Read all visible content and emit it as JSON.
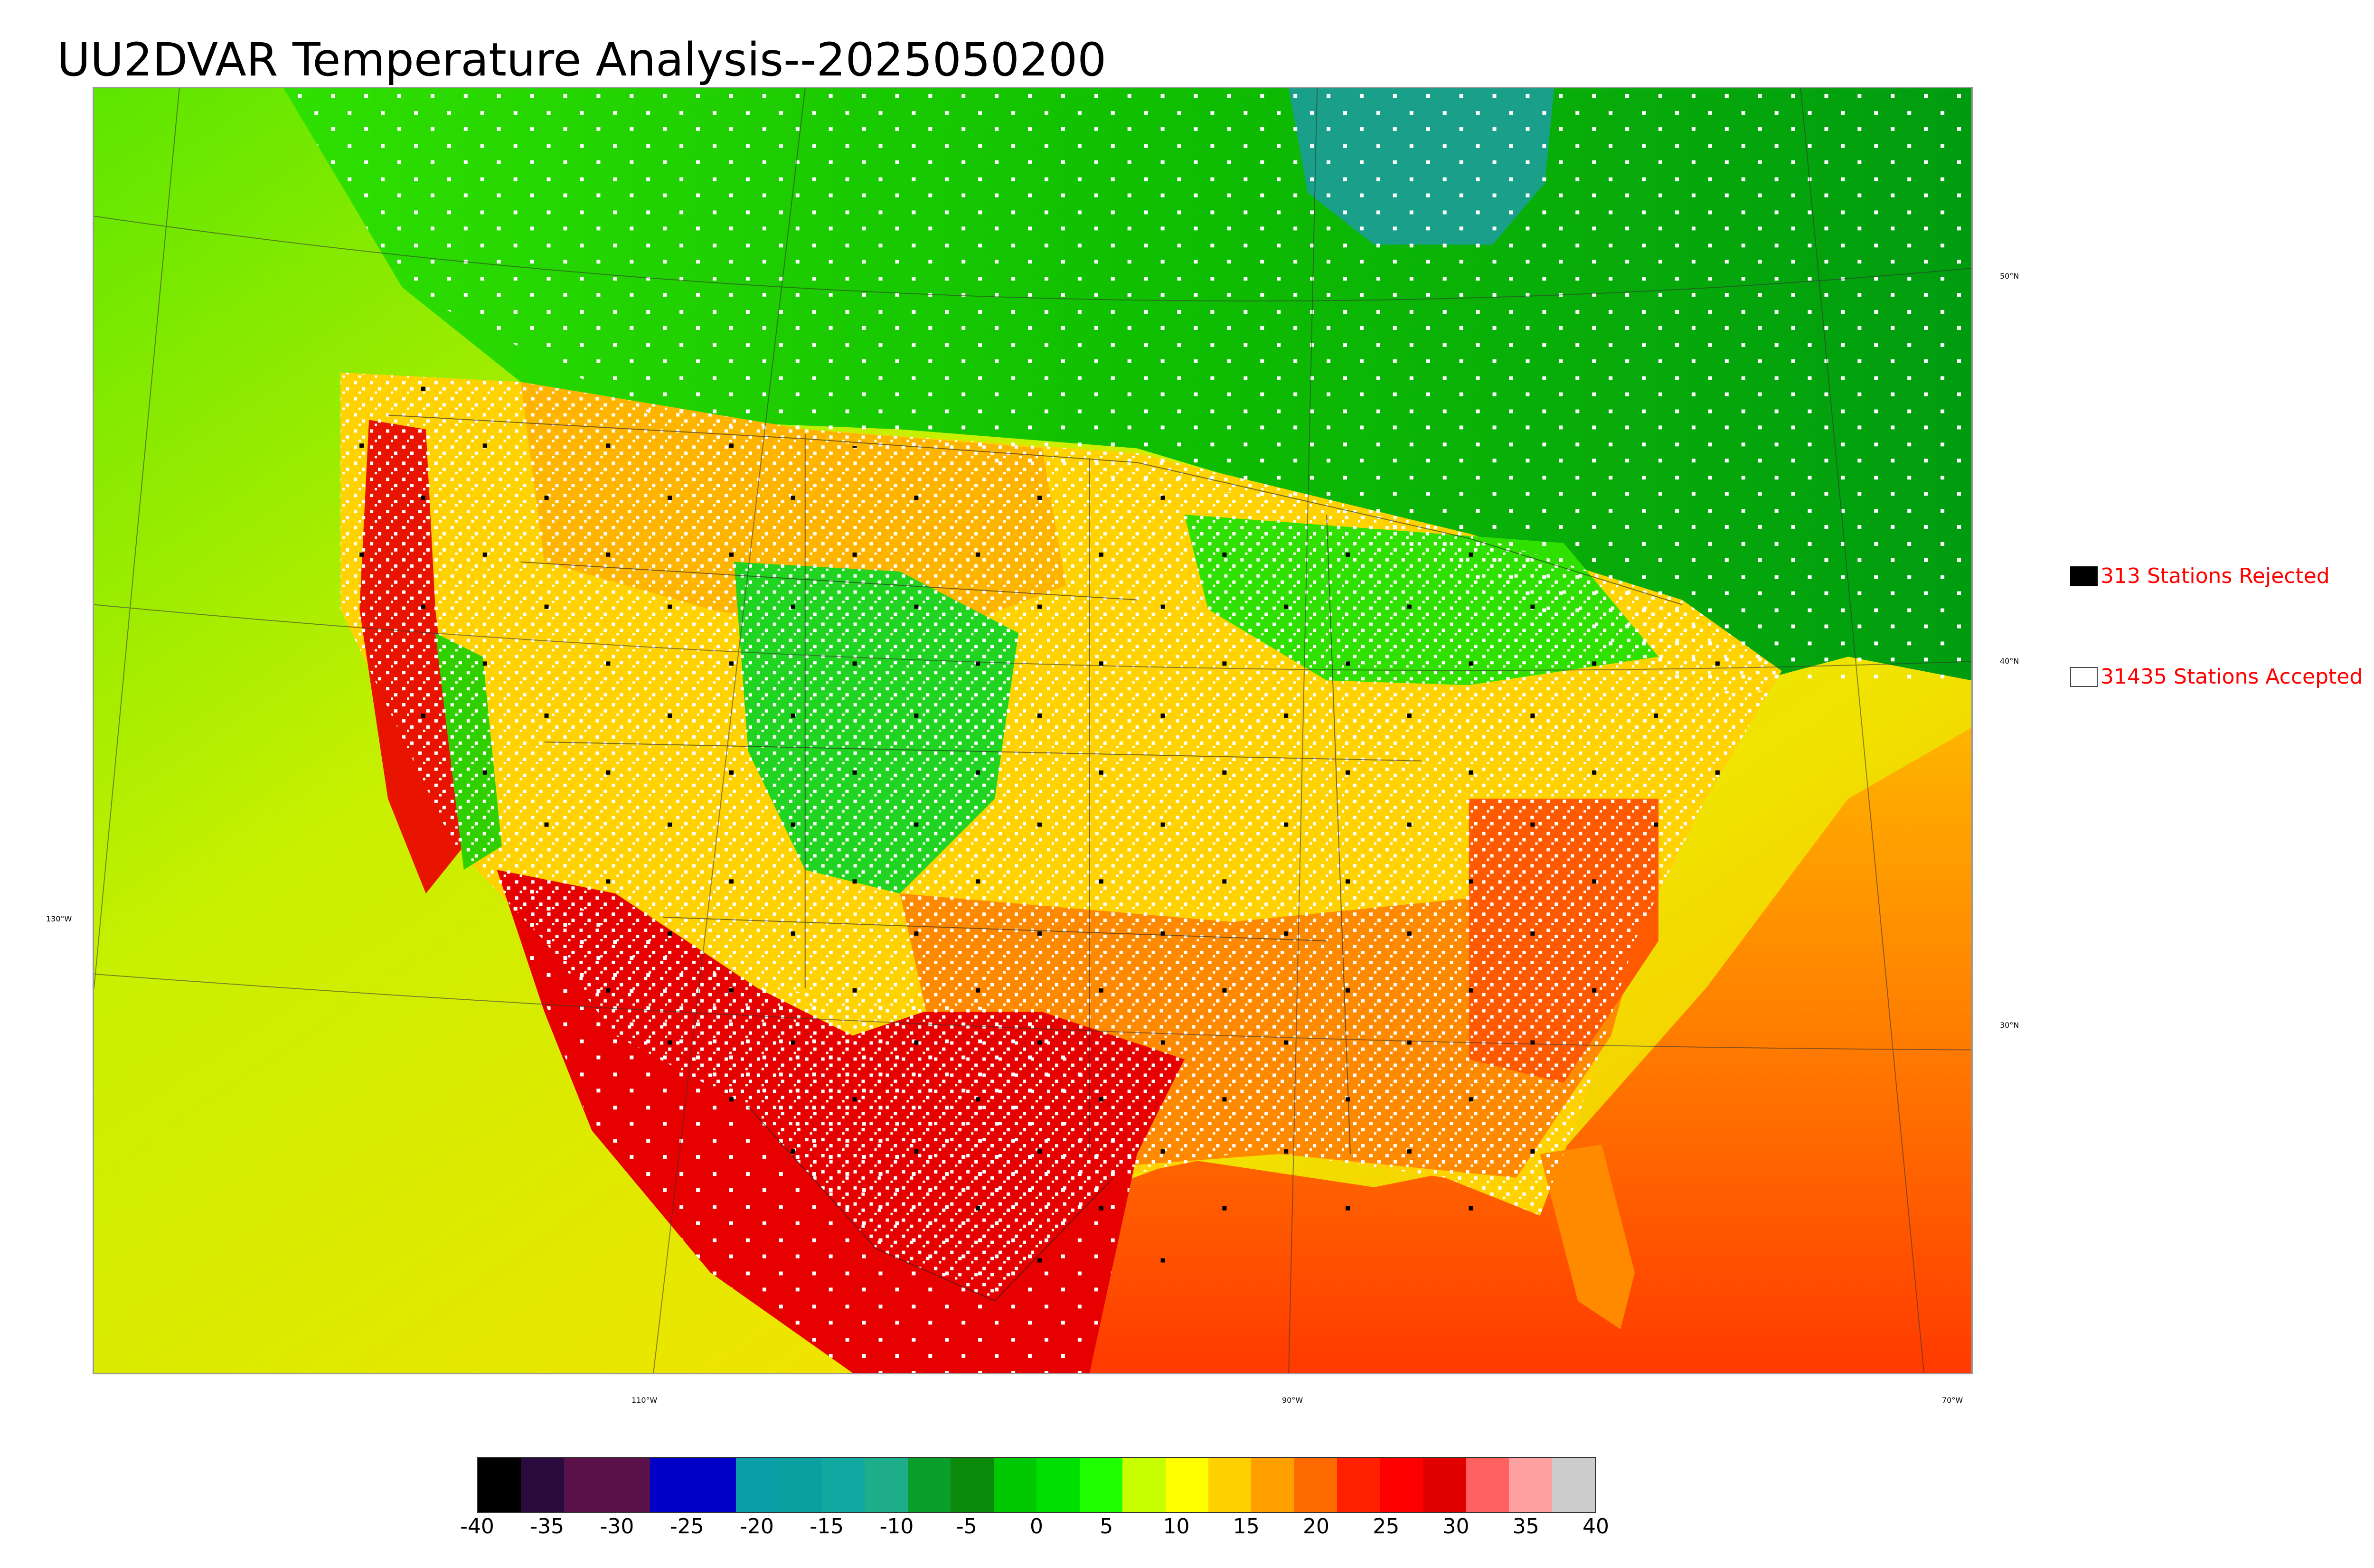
{
  "title": "UU2DVAR Temperature Analysis--2025050200",
  "lat_labels": [
    "50°N",
    "40°N",
    "30°N"
  ],
  "lon_labels": [
    "130°W",
    "110°W",
    "90°W",
    "70°W"
  ],
  "legend": {
    "rejected": {
      "label": "313 Stations Rejected",
      "count": 313,
      "swatch_color": "#000000"
    },
    "accepted": {
      "label": "31435 Stations Accepted",
      "count": 31435,
      "swatch_color": "#ffffff"
    }
  },
  "colorbar": {
    "min": -40,
    "max": 40,
    "ticks": [
      "-40",
      "-35",
      "-30",
      "-25",
      "-20",
      "-15",
      "-10",
      "-5",
      "0",
      "5",
      "10",
      "15",
      "20",
      "25",
      "30",
      "35",
      "40"
    ],
    "colors": [
      "#000000",
      "#2b0a3d",
      "#5a1048",
      "#5a1048",
      "#0000c8",
      "#0000c8",
      "#0a9ea8",
      "#0aa0a0",
      "#10a8a0",
      "#1fae8c",
      "#0a9e2a",
      "#0a8a0a",
      "#00c800",
      "#00e000",
      "#20ff00",
      "#c8ff00",
      "#ffff00",
      "#ffd000",
      "#ffa000",
      "#ff6a00",
      "#ff2000",
      "#ff0000",
      "#e00000",
      "#ff6060",
      "#ffa0a0",
      "#cccccc"
    ]
  },
  "map_colors": {
    "ocean_pacific": "#d9f000",
    "ocean_gulf": "#ff6a00",
    "canada_north": "#1ac81a",
    "hudson": "#1aa08a",
    "central_us": "#ffd200",
    "southwest_hot": "#e60000",
    "rockies": "#22d422"
  },
  "icons": {
    "rejected_marker": "black-square-icon",
    "accepted_marker": "white-square-icon"
  }
}
